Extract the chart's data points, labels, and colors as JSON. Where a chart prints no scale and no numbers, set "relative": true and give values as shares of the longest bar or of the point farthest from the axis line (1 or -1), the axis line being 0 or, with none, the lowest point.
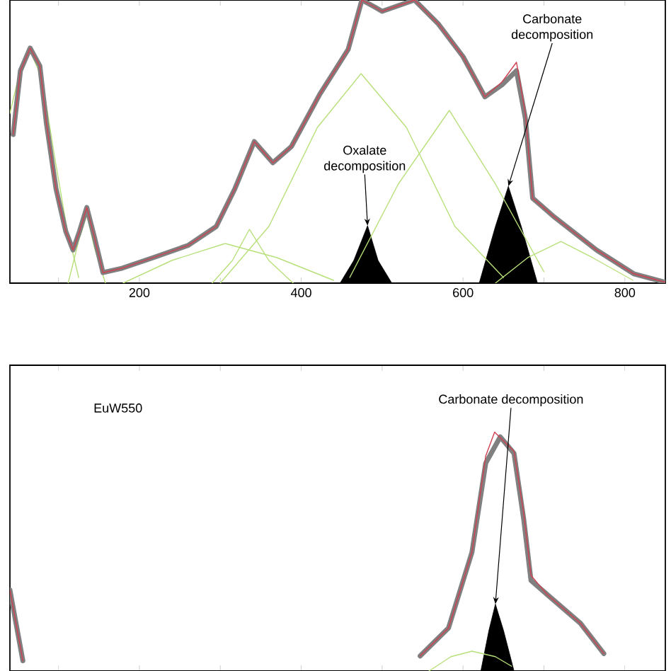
{
  "chart_data": [
    {
      "type": "line",
      "relative": true,
      "xlim": [
        40,
        850
      ],
      "xticks": [
        {
          "value": 100,
          "label": null
        },
        200,
        {
          "value": 300,
          "label": null
        },
        400,
        {
          "value": 500,
          "label": null
        },
        600,
        {
          "value": 700,
          "label": null
        },
        800
      ],
      "series": [
        {
          "type": "area",
          "color": "#000000",
          "x": [
            448,
            465,
            482,
            495,
            512
          ],
          "values": [
            0,
            0.08,
            0.203,
            0.08,
            0
          ]
        },
        {
          "type": "area",
          "color": "#000000",
          "x": [
            620,
            640,
            656,
            672,
            692
          ],
          "values": [
            0,
            0.2,
            0.342,
            0.2,
            0
          ]
        },
        {
          "color": "#b8e07a",
          "x": [
            40,
            55,
            65,
            80,
            95,
            110,
            125
          ],
          "values": [
            0.6,
            0.78,
            0.82,
            0.72,
            0.45,
            0.2,
            0.02
          ]
        },
        {
          "color": "#b8e07a",
          "x": [
            112,
            125,
            135,
            145,
            158
          ],
          "values": [
            0,
            0.15,
            0.24,
            0.12,
            0
          ]
        },
        {
          "color": "#b8e07a",
          "x": [
            180,
            240,
            306,
            370,
            440
          ],
          "values": [
            0,
            0.08,
            0.14,
            0.09,
            0.01
          ]
        },
        {
          "color": "#b8e07a",
          "x": [
            290,
            315,
            336,
            360,
            390
          ],
          "values": [
            0,
            0.08,
            0.19,
            0.08,
            0
          ]
        },
        {
          "color": "#b8e07a",
          "x": [
            300,
            360,
            420,
            474,
            530,
            590,
            650
          ],
          "values": [
            0,
            0.2,
            0.55,
            0.74,
            0.55,
            0.2,
            0.02
          ]
        },
        {
          "color": "#b8e07a",
          "x": [
            460,
            520,
            583,
            640,
            700
          ],
          "values": [
            0.02,
            0.35,
            0.61,
            0.35,
            0.04
          ]
        },
        {
          "color": "#b8e07a",
          "x": [
            640,
            680,
            721,
            760,
            810
          ],
          "values": [
            0,
            0.09,
            0.147,
            0.09,
            0.01
          ]
        },
        {
          "color": "#808080",
          "x": [
            44,
            53,
            65,
            77,
            85,
            97,
            109,
            118,
            126,
            135,
            144,
            155,
            179,
            219,
            260,
            295,
            318,
            342,
            365,
            388,
            423,
            458,
            475,
            491,
            500,
            540,
            569,
            600,
            627,
            648,
            666,
            677,
            686,
            713,
            765,
            811,
            850
          ],
          "values": [
            0.525,
            0.75,
            0.83,
            0.767,
            0.567,
            0.333,
            0.183,
            0.117,
            0.183,
            0.267,
            0.167,
            0.037,
            0.053,
            0.092,
            0.133,
            0.2,
            0.333,
            0.5,
            0.425,
            0.483,
            0.667,
            0.825,
            1.0,
            0.975,
            0.96,
            1.0,
            0.917,
            0.8,
            0.658,
            0.7,
            0.75,
            0.583,
            0.3,
            0.233,
            0.117,
            0.033,
            0.003
          ]
        },
        {
          "color": "#d04050",
          "x": [
            44,
            53,
            65,
            77,
            85,
            97,
            109,
            118,
            126,
            135,
            144,
            155,
            179,
            219,
            260,
            295,
            318,
            342,
            365,
            388,
            423,
            458,
            475,
            491,
            500,
            540,
            569,
            600,
            627,
            648,
            666,
            677,
            686,
            713,
            765,
            811,
            850
          ],
          "values": [
            0.525,
            0.75,
            0.83,
            0.767,
            0.567,
            0.333,
            0.183,
            0.117,
            0.183,
            0.267,
            0.167,
            0.037,
            0.053,
            0.092,
            0.133,
            0.2,
            0.333,
            0.5,
            0.425,
            0.483,
            0.667,
            0.825,
            1.0,
            0.975,
            0.96,
            1.0,
            0.917,
            0.8,
            0.658,
            0.71,
            0.78,
            0.6,
            0.3,
            0.233,
            0.117,
            0.033,
            0.003
          ]
        }
      ],
      "annotations": [
        {
          "text": "Oxalate decomposition",
          "x": 482,
          "y": 0.203
        },
        {
          "text": "Carbonate decomposition",
          "x": 656,
          "y": 0.342
        }
      ]
    },
    {
      "type": "line",
      "relative": true,
      "xlim": [
        40,
        850
      ],
      "xticks": [
        100,
        200,
        300,
        400,
        500,
        600,
        700,
        800
      ],
      "tick_labels": false,
      "series": [
        {
          "type": "area",
          "color": "#000000",
          "x": [
            622,
            632,
            640,
            650,
            663
          ],
          "values": [
            0,
            0.17,
            0.28,
            0.17,
            0
          ]
        },
        {
          "color": "#b8e07a",
          "x": [
            558,
            585,
            611,
            640,
            660
          ],
          "values": [
            0,
            0.06,
            0.083,
            0.06,
            0.02
          ]
        },
        {
          "color": "#808080",
          "x": [
            40,
            56,
            300,
            547,
            582,
            611,
            628,
            646,
            663,
            675,
            684,
            704,
            745,
            774
          ],
          "values": [
            0.339,
            0.043,
            null,
            0.063,
            0.18,
            0.497,
            0.87,
            0.98,
            0.911,
            0.635,
            0.379,
            0.32,
            0.2,
            0.073
          ]
        },
        {
          "color": "#d04050",
          "x": [
            40,
            56,
            300,
            547,
            582,
            611,
            628,
            639,
            663,
            675,
            684,
            704,
            745,
            774
          ],
          "values": [
            0.339,
            0.043,
            null,
            0.063,
            0.18,
            0.497,
            0.9,
            1.0,
            0.92,
            0.66,
            0.4,
            0.32,
            0.2,
            0.073
          ]
        }
      ],
      "annotations": [
        "EuW550",
        {
          "text": "Carbonate decomposition",
          "x": 640,
          "y": 0.28
        }
      ]
    }
  ]
}
